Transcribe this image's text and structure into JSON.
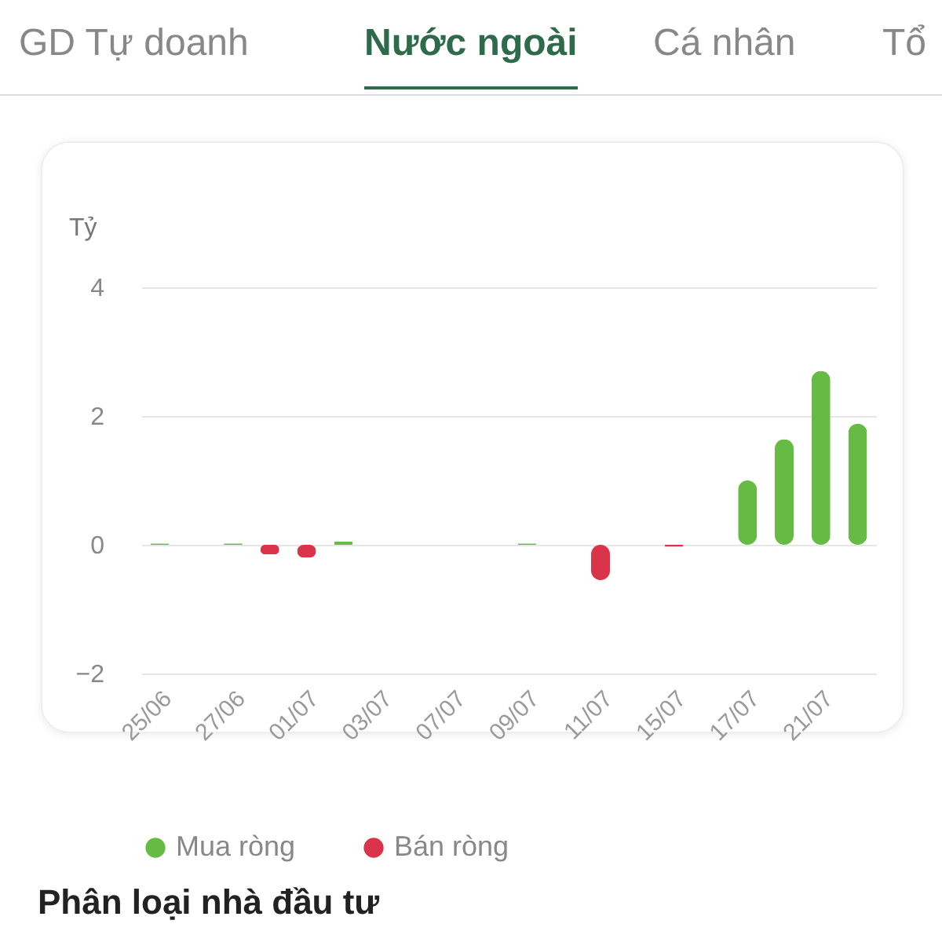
{
  "chart_data": {
    "type": "bar",
    "title": "Nước ngoài",
    "ylabel": "Tỷ",
    "annotations": [
      "GD Tự doanh",
      "Cá nhân",
      "Tổ",
      "Phân loại nhà đầu tư"
    ],
    "categories": [
      "25/06",
      null,
      "27/06",
      null,
      "01/07",
      null,
      "03/07",
      null,
      "07/07",
      null,
      "09/07",
      null,
      "11/07",
      null,
      "15/07",
      null,
      "17/07",
      null,
      "21/07",
      null
    ],
    "series": [
      {
        "name": "Mua ròng",
        "color": "#66bb44",
        "values": [
          0.02,
          null,
          0.02,
          null,
          null,
          0.05,
          null,
          null,
          null,
          null,
          0.02,
          null,
          null,
          null,
          null,
          null,
          1.0,
          1.64,
          2.7,
          1.88
        ]
      },
      {
        "name": "Bán ròng",
        "color": "#d9344a",
        "values": [
          null,
          null,
          null,
          -0.15,
          -0.2,
          null,
          null,
          null,
          null,
          null,
          null,
          null,
          -0.55,
          null,
          -0.03,
          null,
          null,
          null,
          null,
          null
        ]
      }
    ],
    "stacked": true,
    "ylim": [
      -2,
      4
    ],
    "yticks": [
      -2,
      0,
      2,
      4
    ],
    "grid": "y",
    "legend": "bottom"
  }
}
